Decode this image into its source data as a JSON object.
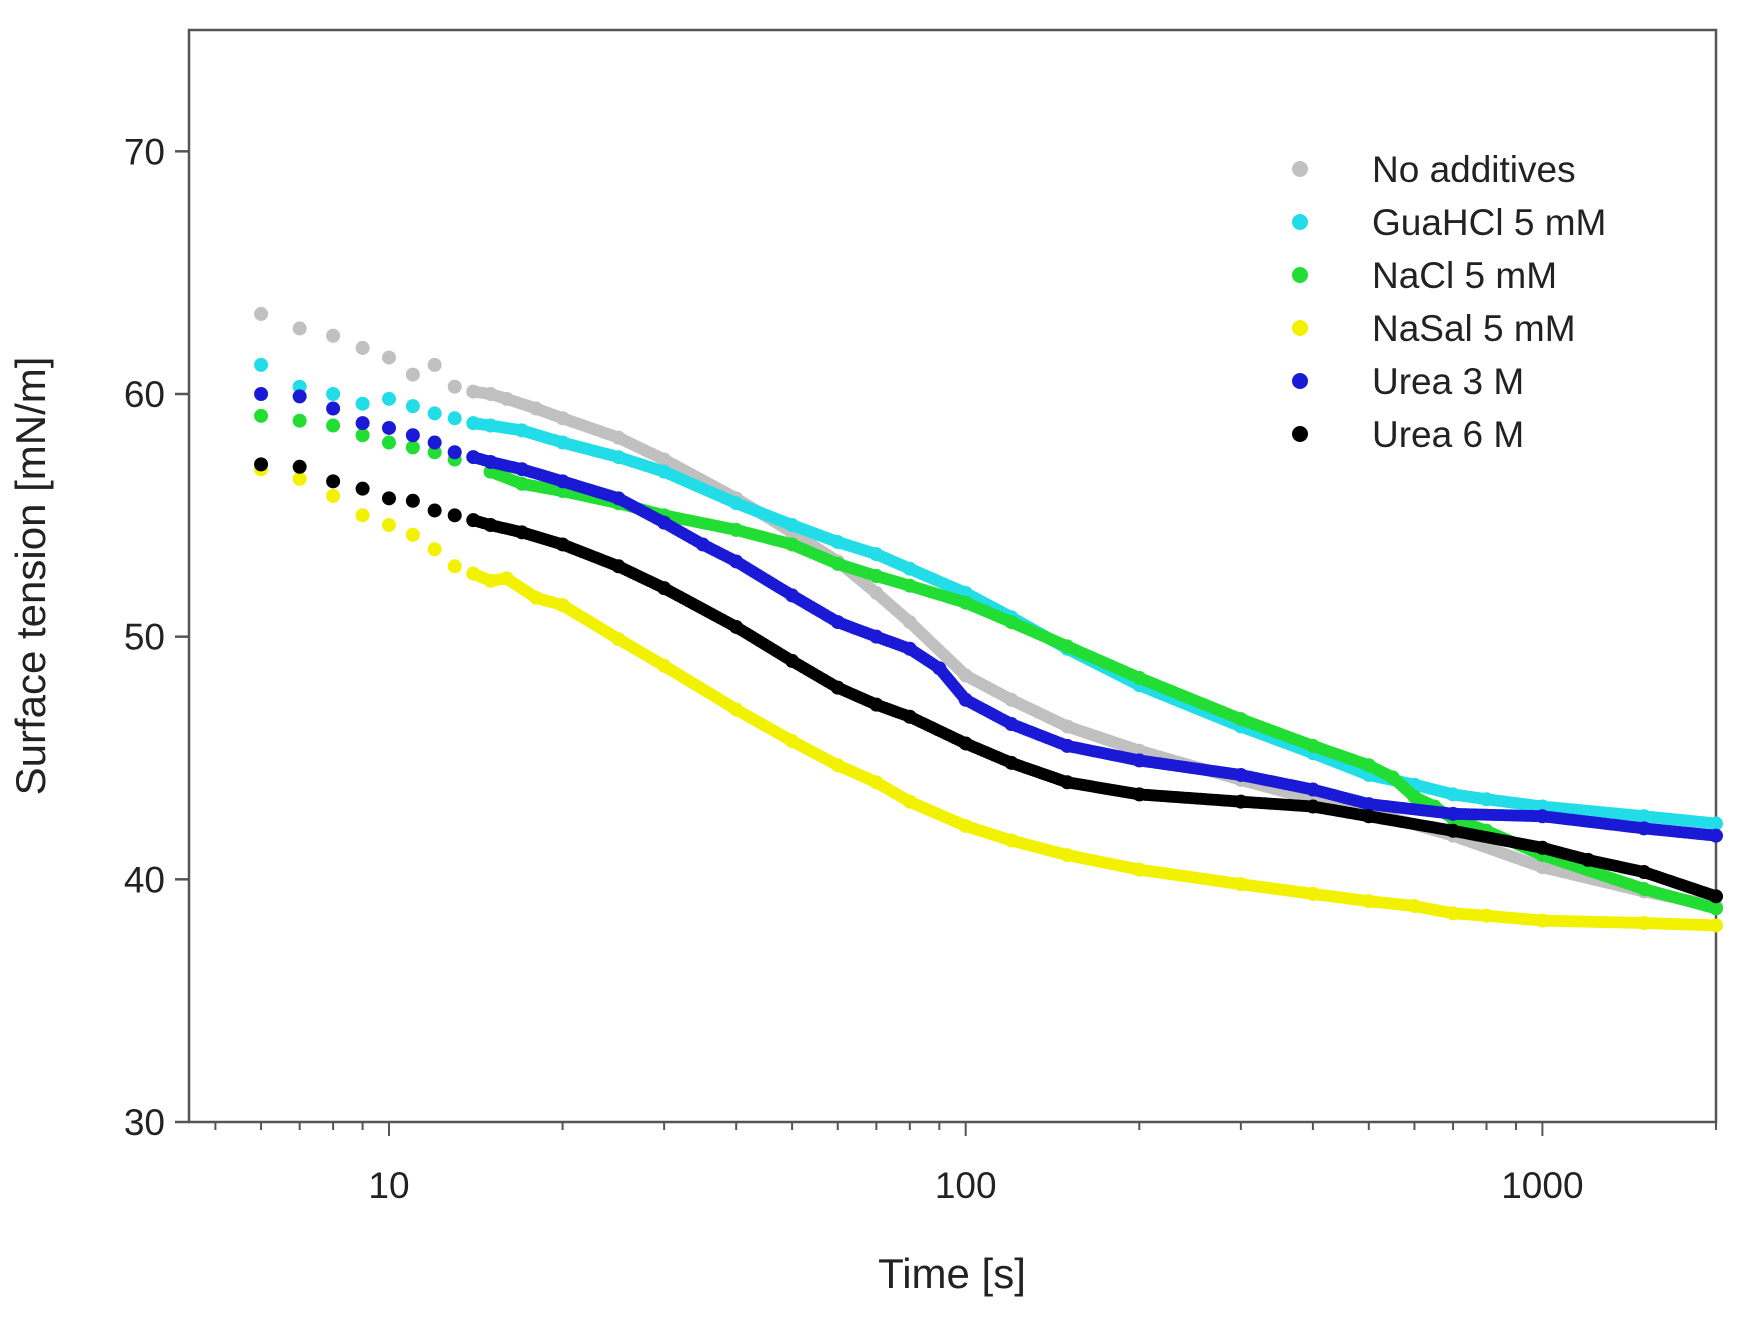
{
  "chart_data": {
    "type": "scatter",
    "title": "",
    "xlabel": "Time [s]",
    "ylabel": "Surface tension [mN/m]",
    "xscale": "log",
    "xlim": [
      4.5,
      2000
    ],
    "ylim": [
      30,
      75
    ],
    "xticks": [
      10,
      100,
      1000
    ],
    "xtick_labels": [
      "10",
      "100",
      "1000"
    ],
    "yticks": [
      30,
      40,
      50,
      60,
      70
    ],
    "ytick_labels": [
      "30",
      "40",
      "50",
      "60",
      "70"
    ],
    "grid": false,
    "legend_position": "top-right",
    "series": [
      {
        "name": "No additives",
        "color": "#c0c0c0",
        "x": [
          6,
          7,
          8,
          9,
          10,
          11,
          12,
          13,
          14,
          15,
          16,
          18,
          20,
          25,
          30,
          40,
          50,
          60,
          70,
          80,
          100,
          120,
          150,
          200,
          300,
          400,
          500,
          700,
          1000,
          1500,
          2000
        ],
        "y": [
          63.3,
          62.7,
          62.4,
          61.9,
          61.5,
          60.8,
          61.2,
          60.3,
          60.1,
          60.0,
          59.8,
          59.4,
          59.0,
          58.2,
          57.3,
          55.7,
          54.3,
          53.1,
          51.8,
          50.6,
          48.4,
          47.4,
          46.3,
          45.3,
          44.1,
          43.3,
          42.8,
          41.8,
          40.5,
          39.5,
          38.9
        ]
      },
      {
        "name": "GuaHCl 5 mM",
        "color": "#22dde8",
        "x": [
          6,
          7,
          8,
          9,
          10,
          11,
          12,
          13,
          14,
          15,
          17,
          20,
          25,
          30,
          40,
          50,
          60,
          70,
          80,
          100,
          120,
          150,
          200,
          300,
          400,
          500,
          600,
          700,
          800,
          1000,
          1500,
          2000
        ],
        "y": [
          61.2,
          60.3,
          60.0,
          59.6,
          59.8,
          59.5,
          59.2,
          59.0,
          58.8,
          58.7,
          58.5,
          58.0,
          57.4,
          56.8,
          55.5,
          54.6,
          53.9,
          53.4,
          52.8,
          51.8,
          50.8,
          49.5,
          48.0,
          46.3,
          45.2,
          44.3,
          43.9,
          43.5,
          43.3,
          43.0,
          42.6,
          42.3
        ]
      },
      {
        "name": "NaCl 5 mM",
        "color": "#22dd33",
        "x": [
          6,
          7,
          8,
          9,
          10,
          11,
          12,
          13,
          15,
          17,
          20,
          25,
          30,
          40,
          50,
          60,
          70,
          80,
          100,
          120,
          150,
          200,
          300,
          400,
          500,
          550,
          600,
          650,
          700,
          800,
          1000,
          1500,
          2000
        ],
        "y": [
          59.1,
          58.9,
          58.7,
          58.3,
          58.0,
          57.8,
          57.6,
          57.3,
          56.8,
          56.3,
          56.0,
          55.5,
          55.0,
          54.4,
          53.8,
          53.0,
          52.5,
          52.1,
          51.4,
          50.6,
          49.6,
          48.3,
          46.6,
          45.5,
          44.7,
          44.2,
          43.4,
          43.0,
          42.5,
          42.0,
          41.0,
          39.6,
          38.8
        ]
      },
      {
        "name": "NaSal 5 mM",
        "color": "#f2f200",
        "x": [
          6,
          7,
          8,
          9,
          10,
          11,
          12,
          13,
          14,
          15,
          16,
          18,
          20,
          25,
          30,
          40,
          50,
          60,
          70,
          80,
          100,
          120,
          150,
          200,
          300,
          400,
          500,
          600,
          700,
          800,
          1000,
          1500,
          2000
        ],
        "y": [
          56.9,
          56.5,
          55.8,
          55.0,
          54.6,
          54.2,
          53.6,
          52.9,
          52.6,
          52.3,
          52.4,
          51.6,
          51.3,
          49.9,
          48.8,
          47.0,
          45.7,
          44.7,
          44.0,
          43.2,
          42.2,
          41.6,
          41.0,
          40.4,
          39.8,
          39.4,
          39.1,
          38.9,
          38.6,
          38.5,
          38.3,
          38.2,
          38.1
        ]
      },
      {
        "name": "Urea 3 M",
        "color": "#1a1ad6",
        "x": [
          6,
          7,
          8,
          9,
          10,
          11,
          12,
          13,
          14,
          15,
          17,
          20,
          25,
          30,
          35,
          40,
          50,
          60,
          70,
          80,
          90,
          100,
          120,
          150,
          200,
          300,
          400,
          500,
          700,
          1000,
          1500,
          2000
        ],
        "y": [
          60.0,
          59.9,
          59.4,
          58.8,
          58.6,
          58.3,
          58.0,
          57.6,
          57.4,
          57.2,
          56.9,
          56.4,
          55.7,
          54.7,
          53.8,
          53.1,
          51.7,
          50.6,
          50.0,
          49.5,
          48.7,
          47.4,
          46.4,
          45.5,
          44.9,
          44.3,
          43.7,
          43.1,
          42.7,
          42.6,
          42.1,
          41.8
        ]
      },
      {
        "name": "Urea 6 M",
        "color": "#000000",
        "x": [
          6,
          7,
          8,
          9,
          10,
          11,
          12,
          13,
          14,
          15,
          17,
          20,
          25,
          30,
          40,
          50,
          60,
          70,
          80,
          100,
          120,
          150,
          200,
          300,
          400,
          500,
          700,
          1000,
          1200,
          1500,
          2000
        ],
        "y": [
          57.1,
          57.0,
          56.4,
          56.1,
          55.7,
          55.6,
          55.2,
          55.0,
          54.8,
          54.6,
          54.3,
          53.8,
          52.9,
          52.0,
          50.4,
          49.0,
          47.9,
          47.2,
          46.7,
          45.6,
          44.8,
          44.0,
          43.5,
          43.2,
          43.0,
          42.6,
          42.0,
          41.3,
          40.8,
          40.3,
          39.3
        ]
      }
    ]
  }
}
